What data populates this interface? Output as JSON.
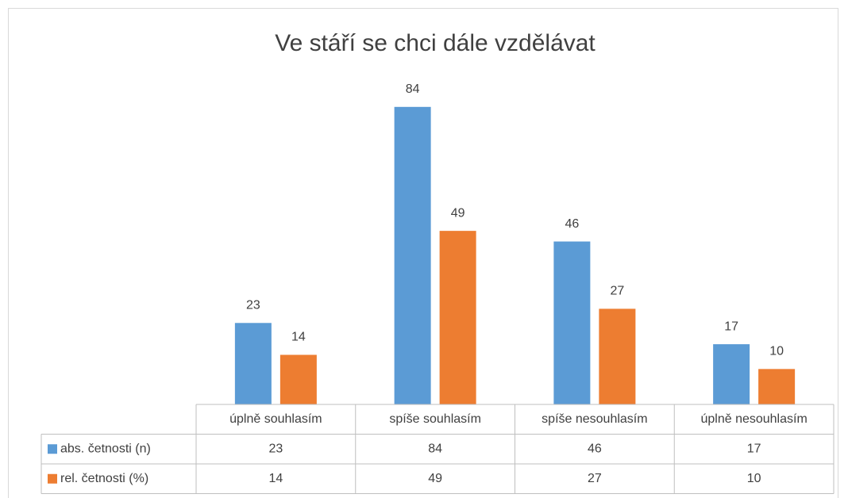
{
  "chart_data": {
    "type": "bar",
    "title": "Ve stáří se chci dále vzdělávat",
    "categories": [
      "úplně souhlasím",
      "spíše souhlasím",
      "spíše nesouhlasím",
      "úplně nesouhlasím"
    ],
    "series": [
      {
        "name": "abs. četnosti (n)",
        "color": "#5b9bd5",
        "values": [
          23,
          84,
          46,
          17
        ]
      },
      {
        "name": "rel. četnosti (%)",
        "color": "#ed7d31",
        "values": [
          14,
          49,
          27,
          10
        ]
      }
    ],
    "ylim": [
      0,
      90
    ],
    "grid": false,
    "data_table": true
  }
}
